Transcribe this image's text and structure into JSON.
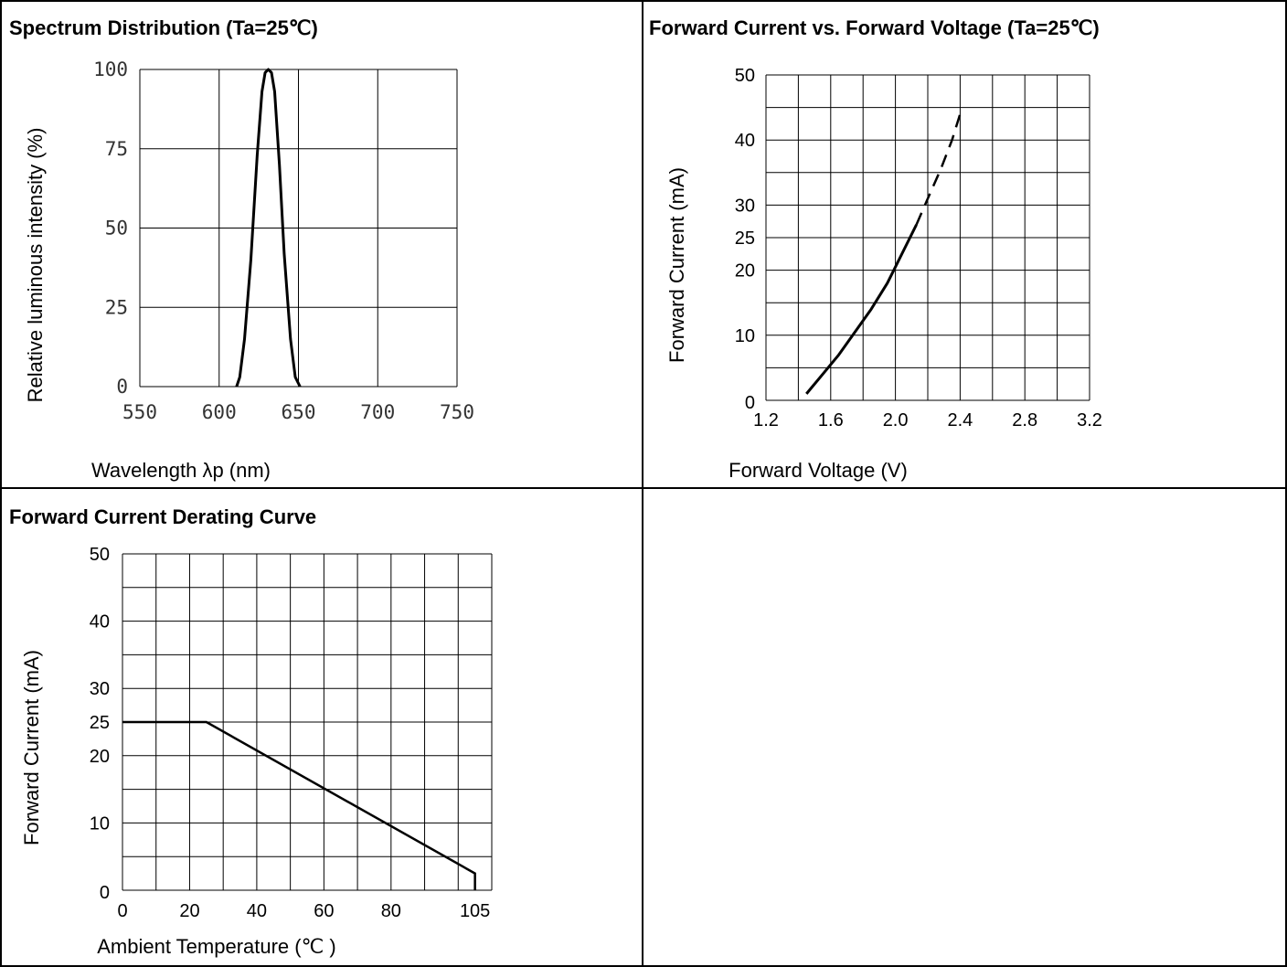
{
  "chart_data": [
    {
      "type": "line",
      "title": "Spectrum Distribution (Ta=25℃)",
      "xlabel": "Wavelength λp (nm)",
      "ylabel": "Relative luminous intensity (%)",
      "xlim": [
        550,
        750
      ],
      "ylim": [
        0,
        100
      ],
      "x_ticks": [
        "550",
        "600",
        "650",
        "700",
        "750"
      ],
      "y_ticks": [
        "0",
        "25",
        "50",
        "75",
        "100"
      ],
      "grid": true,
      "series": [
        {
          "x": [
            611,
            613,
            616,
            620,
            624,
            627,
            629,
            631,
            633,
            635,
            638,
            641,
            645,
            648,
            651
          ],
          "y": [
            0,
            3,
            15,
            40,
            73,
            93,
            99,
            100,
            99,
            93,
            70,
            42,
            15,
            3,
            0
          ]
        }
      ]
    },
    {
      "type": "line",
      "title": "Forward Current vs. Forward Voltage (Ta=25℃)",
      "xlabel": "Forward Voltage (V)",
      "ylabel": "Forward Current (mA)",
      "xlim": [
        1.2,
        3.2
      ],
      "ylim": [
        0,
        50
      ],
      "x_ticks": [
        "1.2",
        "1.6",
        "2.0",
        "2.4",
        "2.8",
        "3.2"
      ],
      "y_ticks": [
        "0",
        "10",
        "20",
        "25",
        "30",
        "40",
        "50"
      ],
      "grid": true,
      "series": [
        {
          "style": "solid",
          "x": [
            1.45,
            1.55,
            1.65,
            1.75,
            1.85,
            1.95,
            2.0,
            2.05,
            2.13
          ],
          "y": [
            1,
            4,
            7,
            10.5,
            14,
            18,
            20.5,
            23,
            27
          ]
        },
        {
          "style": "dashed",
          "x": [
            2.13,
            2.2,
            2.28,
            2.35,
            2.4
          ],
          "y": [
            27,
            31,
            35.5,
            40,
            44
          ]
        }
      ]
    },
    {
      "type": "line",
      "title": "Forward Current Derating Curve",
      "xlabel": "Ambient Temperature (℃ )",
      "ylabel": "Forward Current (mA)",
      "xlim": [
        0,
        110
      ],
      "ylim": [
        0,
        50
      ],
      "x_ticks": [
        {
          "value": 0,
          "label": "0"
        },
        {
          "value": 20,
          "label": "20"
        },
        {
          "value": 40,
          "label": "40"
        },
        {
          "value": 60,
          "label": "60"
        },
        {
          "value": 80,
          "label": "80"
        },
        {
          "value": 105,
          "label": "105"
        }
      ],
      "y_ticks": [
        "0",
        "10",
        "20",
        "25",
        "30",
        "40",
        "50"
      ],
      "grid": true,
      "series": [
        {
          "x": [
            0,
            25,
            105,
            105
          ],
          "y": [
            25,
            25,
            2.5,
            0
          ]
        }
      ]
    }
  ]
}
